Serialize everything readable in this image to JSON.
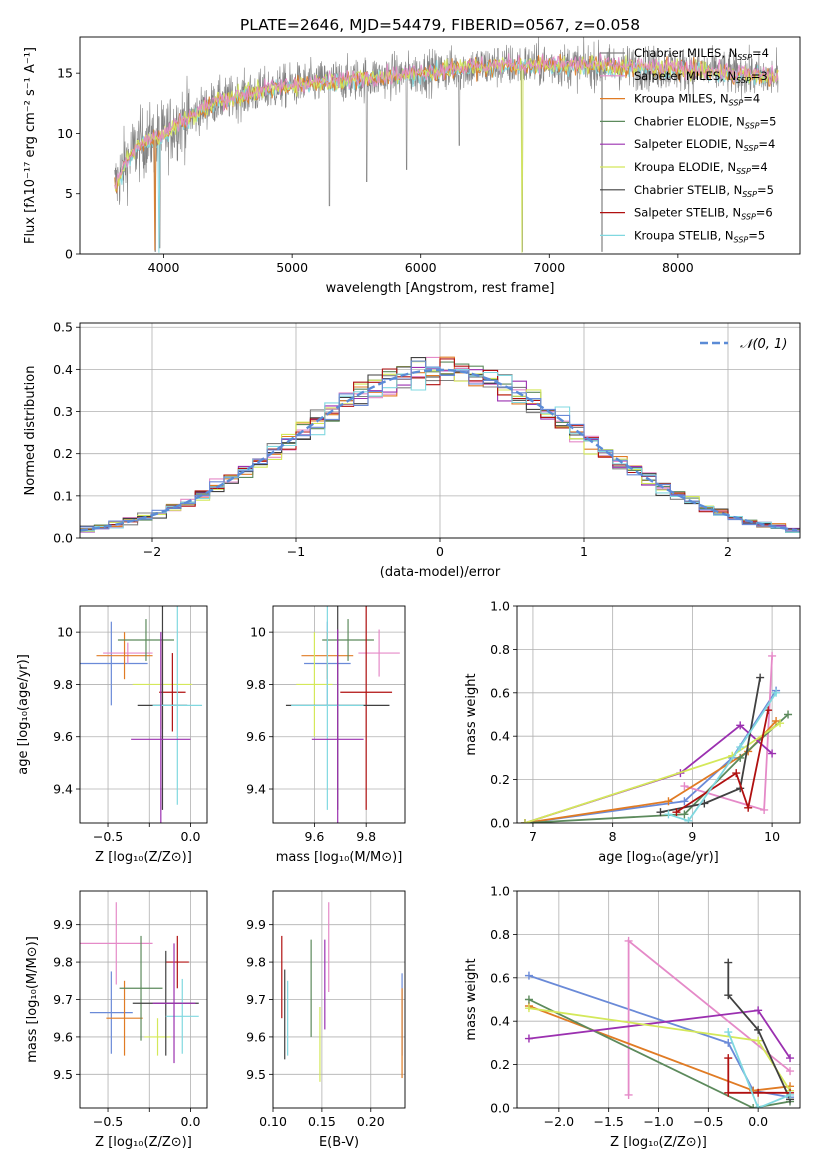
{
  "figure_title": "PLATE=2646, MJD=54479, FIBERID=0567, z=0.058",
  "colors": {
    "c0": "#808080",
    "c1": "#e58ac8",
    "c2": "#e07b24",
    "c3": "#5c8a5c",
    "c4": "#9b30b0",
    "c5": "#d4e85a",
    "c6": "#404040",
    "c7": "#b01010",
    "c8": "#80d8e0",
    "c9": "#6a8ad8"
  },
  "chart_data": [
    {
      "type": "line",
      "xlabel": "wavelength [Angstrom, rest frame]",
      "ylabel": "Flux [fλ10⁻¹⁷ erg cm⁻² s⁻¹ A⁻¹]",
      "xlim": [
        3350,
        8950
      ],
      "ylim": [
        0,
        18
      ],
      "xticks": [
        4000,
        5000,
        6000,
        7000,
        8000
      ],
      "yticks": [
        0,
        5,
        10,
        15
      ],
      "grid": false,
      "legend_location": "upper-right",
      "legend": [
        "Chabrier MILES, N_SSP=4",
        "Salpeter MILES, N_SSP=3",
        "Kroupa MILES, N_SSP=4",
        "Chabrier ELODIE, N_SSP=5",
        "Salpeter ELODIE, N_SSP=4",
        "Kroupa ELODIE, N_SSP=4",
        "Chabrier STELIB, N_SSP=5",
        "Salpeter STELIB, N_SSP=6",
        "Kroupa STELIB, N_SSP=5"
      ],
      "legend_colors": [
        "c0",
        "c1",
        "c2",
        "c3",
        "c4",
        "c5",
        "c6",
        "c7",
        "c8"
      ],
      "spectrum_continuum": {
        "x": [
          3620,
          3700,
          3800,
          3900,
          4000,
          4100,
          4200,
          4300,
          4400,
          4600,
          4800,
          5000,
          5200,
          5500,
          5800,
          6000,
          6300,
          6600,
          7000,
          7400,
          7800,
          8200,
          8600,
          8780
        ],
        "y": [
          5.5,
          7.5,
          9.0,
          9.5,
          9.8,
          10.8,
          11.3,
          12.0,
          12.6,
          13.1,
          13.6,
          14.0,
          14.2,
          14.5,
          14.8,
          15.0,
          15.4,
          15.6,
          15.7,
          15.6,
          15.4,
          15.2,
          14.8,
          14.6
        ]
      },
      "spectrum_noise_amplitude": 1.6,
      "spectrum_dips": [
        [
          3935,
          0.2
        ],
        [
          3970,
          0.5
        ],
        [
          5290,
          4.0
        ],
        [
          5580,
          6.0
        ],
        [
          5890,
          7.0
        ],
        [
          6300,
          9.0
        ],
        [
          6790,
          0.2
        ],
        [
          7410,
          0.2
        ]
      ]
    },
    {
      "type": "step",
      "xlabel": "(data-model)/error",
      "ylabel": "Normed distribution",
      "xlim": [
        -2.5,
        2.5
      ],
      "ylim": [
        0,
        0.51
      ],
      "xticks": [
        -2,
        -1,
        0,
        1,
        2
      ],
      "xtick_labels": [
        "−2",
        "−1",
        "0",
        "1",
        "2"
      ],
      "yticks": [
        0.0,
        0.1,
        0.2,
        0.3,
        0.4,
        0.5
      ],
      "ytick_labels": [
        "0.0",
        "0.1",
        "0.2",
        "0.3",
        "0.4",
        "0.5"
      ],
      "grid": true,
      "legend": [
        "𝒩(0, 1)"
      ],
      "legend_location": "upper-right",
      "bin_width": 0.1,
      "histogram_series_colors": [
        "c0",
        "c1",
        "c2",
        "c3",
        "c4",
        "c5",
        "c6",
        "c7",
        "c8",
        "c9"
      ]
    },
    {
      "type": "errorbar",
      "xlabel": "Z [log₁₀(Z/Z⊙)]",
      "ylabel": "age  [log₁₀(age/yr)]",
      "xlim": [
        -0.67,
        0.1
      ],
      "ylim": [
        9.27,
        10.1
      ],
      "xticks": [
        -0.5,
        -0.25,
        0.0
      ],
      "xtick_labels": [
        "−0.5",
        "",
        "0.0"
      ],
      "yticks": [
        9.4,
        9.6,
        9.8,
        10.0
      ],
      "grid": true,
      "points": [
        {
          "x": -0.48,
          "xerr": 0.22,
          "y": 9.88,
          "yerr": 0.16,
          "color": "c9"
        },
        {
          "x": -0.38,
          "xerr": 0.15,
          "y": 9.92,
          "yerr": 0.04,
          "color": "c1"
        },
        {
          "x": -0.4,
          "xerr": 0.17,
          "y": 9.91,
          "yerr": 0.09,
          "color": "c2"
        },
        {
          "x": -0.27,
          "xerr": 0.17,
          "y": 9.97,
          "yerr": 0.08,
          "color": "c3"
        },
        {
          "x": -0.17,
          "xerr": 0.18,
          "y": 9.8,
          "yerr": 0.17,
          "color": "c5"
        },
        {
          "x": -0.11,
          "xerr": 0.08,
          "y": 9.77,
          "yerr": 0.15,
          "color": "c7"
        },
        {
          "x": -0.17,
          "xerr": 0.15,
          "y": 9.72,
          "yerr": 0.4,
          "color": "c6"
        },
        {
          "x": -0.08,
          "xerr": 0.15,
          "y": 9.72,
          "yerr": 0.38,
          "color": "c8"
        },
        {
          "x": -0.18,
          "xerr": 0.18,
          "y": 9.59,
          "yerr": 0.41,
          "color": "c4"
        }
      ]
    },
    {
      "type": "errorbar",
      "xlabel": "mass [log₁₀(M/M⊙)]",
      "ylabel": "",
      "xlim": [
        9.44,
        9.95
      ],
      "ylim": [
        9.27,
        10.1
      ],
      "xticks": [
        9.6,
        9.8
      ],
      "yticks": [
        9.4,
        9.6,
        9.8,
        10.0
      ],
      "grid": true,
      "points": [
        {
          "x": 9.65,
          "xerr": 0.09,
          "y": 9.88,
          "yerr": 0.16,
          "color": "c9"
        },
        {
          "x": 9.85,
          "xerr": 0.08,
          "y": 9.92,
          "yerr": 0.09,
          "color": "c1"
        },
        {
          "x": 9.65,
          "xerr": 0.1,
          "y": 9.91,
          "yerr": 0.09,
          "color": "c2"
        },
        {
          "x": 9.73,
          "xerr": 0.1,
          "y": 9.97,
          "yerr": 0.08,
          "color": "c3"
        },
        {
          "x": 9.6,
          "xerr": 0.07,
          "y": 9.8,
          "yerr": 0.2,
          "color": "c5"
        },
        {
          "x": 9.8,
          "xerr": 0.1,
          "y": 9.77,
          "yerr": 0.45,
          "color": "c7"
        },
        {
          "x": 9.69,
          "xerr": 0.2,
          "y": 9.72,
          "yerr": 0.4,
          "color": "c6"
        },
        {
          "x": 9.65,
          "xerr": 0.14,
          "y": 9.72,
          "yerr": 0.4,
          "color": "c8"
        },
        {
          "x": 9.69,
          "xerr": 0.1,
          "y": 9.59,
          "yerr": 0.42,
          "color": "c4"
        }
      ]
    },
    {
      "type": "line",
      "xlabel": "age  [log₁₀(age/yr)]",
      "ylabel": "mass weight",
      "xlim": [
        6.8,
        10.35
      ],
      "ylim": [
        0,
        1.0
      ],
      "xticks": [
        7,
        8,
        9,
        10
      ],
      "yticks": [
        0.0,
        0.2,
        0.4,
        0.6,
        0.8,
        1.0
      ],
      "ytick_labels": [
        "0.0",
        "0.2",
        "0.4",
        "0.6",
        "0.8",
        "1.0"
      ],
      "grid": true,
      "series": [
        {
          "color": "c9",
          "points": [
            [
              6.9,
              0.0
            ],
            [
              8.9,
              0.1
            ],
            [
              9.5,
              0.3
            ],
            [
              10.05,
              0.61
            ]
          ]
        },
        {
          "color": "c1",
          "points": [
            [
              8.9,
              0.17
            ],
            [
              9.9,
              0.06
            ],
            [
              10.0,
              0.77
            ]
          ]
        },
        {
          "color": "c2",
          "points": [
            [
              6.9,
              0.0
            ],
            [
              8.7,
              0.1
            ],
            [
              9.7,
              0.33
            ],
            [
              10.05,
              0.47
            ]
          ]
        },
        {
          "color": "c3",
          "points": [
            [
              6.9,
              0.0
            ],
            [
              8.9,
              0.04
            ],
            [
              9.6,
              0.3
            ],
            [
              10.2,
              0.5
            ]
          ]
        },
        {
          "color": "c4",
          "points": [
            [
              6.9,
              0.0
            ],
            [
              8.85,
              0.23
            ],
            [
              9.6,
              0.45
            ],
            [
              10.0,
              0.32
            ]
          ]
        },
        {
          "color": "c5",
          "points": [
            [
              6.9,
              0.0
            ],
            [
              9.5,
              0.31
            ],
            [
              10.1,
              0.46
            ]
          ]
        },
        {
          "color": "c6",
          "points": [
            [
              8.6,
              0.05
            ],
            [
              9.15,
              0.09
            ],
            [
              9.6,
              0.16
            ],
            [
              9.85,
              0.67
            ]
          ]
        },
        {
          "color": "c7",
          "points": [
            [
              8.8,
              0.05
            ],
            [
              9.55,
              0.23
            ],
            [
              9.7,
              0.07
            ],
            [
              9.95,
              0.52
            ]
          ]
        },
        {
          "color": "c8",
          "points": [
            [
              8.7,
              0.04
            ],
            [
              8.95,
              0.01
            ],
            [
              9.6,
              0.35
            ],
            [
              10.05,
              0.6
            ]
          ]
        }
      ]
    },
    {
      "type": "errorbar",
      "xlabel": "Z [log₁₀(Z/Z⊙)]",
      "ylabel": "mass [log₁₀(M/M⊙)]",
      "xlim": [
        -0.67,
        0.1
      ],
      "ylim": [
        9.41,
        9.99
      ],
      "xticks": [
        -0.5,
        -0.25,
        0.0
      ],
      "xtick_labels": [
        "−0.5",
        "",
        "0.0"
      ],
      "yticks": [
        9.5,
        9.6,
        9.7,
        9.8,
        9.9
      ],
      "grid": true,
      "points": [
        {
          "x": -0.48,
          "xerr": 0.13,
          "y": 9.665,
          "yerr": 0.11,
          "color": "c9"
        },
        {
          "x": -0.45,
          "xerr": 0.22,
          "y": 9.85,
          "yerr": 0.11,
          "color": "c1"
        },
        {
          "x": -0.4,
          "xerr": 0.11,
          "y": 9.65,
          "yerr": 0.1,
          "color": "c2"
        },
        {
          "x": -0.3,
          "xerr": 0.13,
          "y": 9.73,
          "yerr": 0.14,
          "color": "c3"
        },
        {
          "x": -0.2,
          "xerr": 0.08,
          "y": 9.6,
          "yerr": 0.05,
          "color": "c5"
        },
        {
          "x": -0.08,
          "xerr": 0.07,
          "y": 9.8,
          "yerr": 0.07,
          "color": "c7"
        },
        {
          "x": -0.15,
          "xerr": 0.2,
          "y": 9.69,
          "yerr": 0.14,
          "color": "c6"
        },
        {
          "x": -0.05,
          "xerr": 0.1,
          "y": 9.655,
          "yerr": 0.1,
          "color": "c8"
        },
        {
          "x": -0.1,
          "xerr": 0.13,
          "y": 9.69,
          "yerr": 0.16,
          "color": "c4"
        }
      ]
    },
    {
      "type": "errorbar",
      "xlabel": "E(B-V)",
      "ylabel": "",
      "xlim": [
        0.1,
        0.235
      ],
      "ylim": [
        9.41,
        9.99
      ],
      "xticks": [
        0.1,
        0.15,
        0.2
      ],
      "xtick_labels": [
        "0.10",
        "0.15",
        "0.20"
      ],
      "yticks": [
        9.5,
        9.6,
        9.7,
        9.8,
        9.9
      ],
      "grid": true,
      "points": [
        {
          "x": 0.109,
          "y": 9.76,
          "yerr": 0.11,
          "color": "c7"
        },
        {
          "x": 0.112,
          "y": 9.66,
          "yerr": 0.12,
          "color": "c6"
        },
        {
          "x": 0.115,
          "y": 9.65,
          "yerr": 0.1,
          "color": "c8"
        },
        {
          "x": 0.139,
          "y": 9.73,
          "yerr": 0.13,
          "color": "c3"
        },
        {
          "x": 0.148,
          "y": 9.58,
          "yerr": 0.1,
          "color": "c5"
        },
        {
          "x": 0.153,
          "y": 9.74,
          "yerr": 0.12,
          "color": "c4"
        },
        {
          "x": 0.157,
          "y": 9.84,
          "yerr": 0.12,
          "color": "c1"
        },
        {
          "x": 0.232,
          "y": 9.66,
          "yerr": 0.11,
          "color": "c9"
        },
        {
          "x": 0.232,
          "y": 9.61,
          "yerr": 0.12,
          "color": "c2"
        }
      ]
    },
    {
      "type": "line",
      "xlabel": "Z [log₁₀(Z/Z⊙)]",
      "ylabel": "mass weight",
      "xlim": [
        -2.42,
        0.42
      ],
      "ylim": [
        0,
        1.0
      ],
      "xticks": [
        -2.0,
        -1.5,
        -1.0,
        -0.5,
        0.0
      ],
      "xtick_labels": [
        "−2.0",
        "−1.5",
        "−1.0",
        "−0.5",
        "0.0"
      ],
      "yticks": [
        0.0,
        0.2,
        0.4,
        0.6,
        0.8,
        1.0
      ],
      "ytick_labels": [
        "0.0",
        "0.2",
        "0.4",
        "0.6",
        "0.8",
        "1.0"
      ],
      "grid": true,
      "series": [
        {
          "color": "c9",
          "points": [
            [
              -2.3,
              0.61
            ],
            [
              -0.3,
              0.3
            ],
            [
              -0.05,
              0.08
            ],
            [
              0.32,
              0.05
            ]
          ]
        },
        {
          "color": "c1",
          "points": [
            [
              -1.3,
              0.06
            ],
            [
              -1.3,
              0.77
            ],
            [
              0.32,
              0.17
            ]
          ]
        },
        {
          "color": "c2",
          "points": [
            [
              -2.3,
              0.47
            ],
            [
              -0.05,
              0.08
            ],
            [
              0.32,
              0.1
            ]
          ]
        },
        {
          "color": "c3",
          "points": [
            [
              -2.3,
              0.5
            ],
            [
              -0.05,
              0.0
            ],
            [
              0.32,
              0.03
            ]
          ]
        },
        {
          "color": "c4",
          "points": [
            [
              -2.3,
              0.32
            ],
            [
              0.0,
              0.45
            ],
            [
              0.32,
              0.23
            ]
          ]
        },
        {
          "color": "c5",
          "points": [
            [
              -2.3,
              0.46
            ],
            [
              0.0,
              0.31
            ],
            [
              0.32,
              0.08
            ]
          ]
        },
        {
          "color": "c6",
          "points": [
            [
              -0.3,
              0.67
            ],
            [
              -0.3,
              0.52
            ],
            [
              0.0,
              0.36
            ],
            [
              0.32,
              0.04
            ]
          ]
        },
        {
          "color": "c7",
          "points": [
            [
              -0.3,
              0.23
            ],
            [
              -0.3,
              0.07
            ],
            [
              0.0,
              0.07
            ],
            [
              0.32,
              0.07
            ]
          ]
        },
        {
          "color": "c8",
          "points": [
            [
              -0.3,
              0.35
            ],
            [
              0.0,
              0.0
            ],
            [
              0.32,
              0.06
            ]
          ]
        }
      ]
    }
  ]
}
